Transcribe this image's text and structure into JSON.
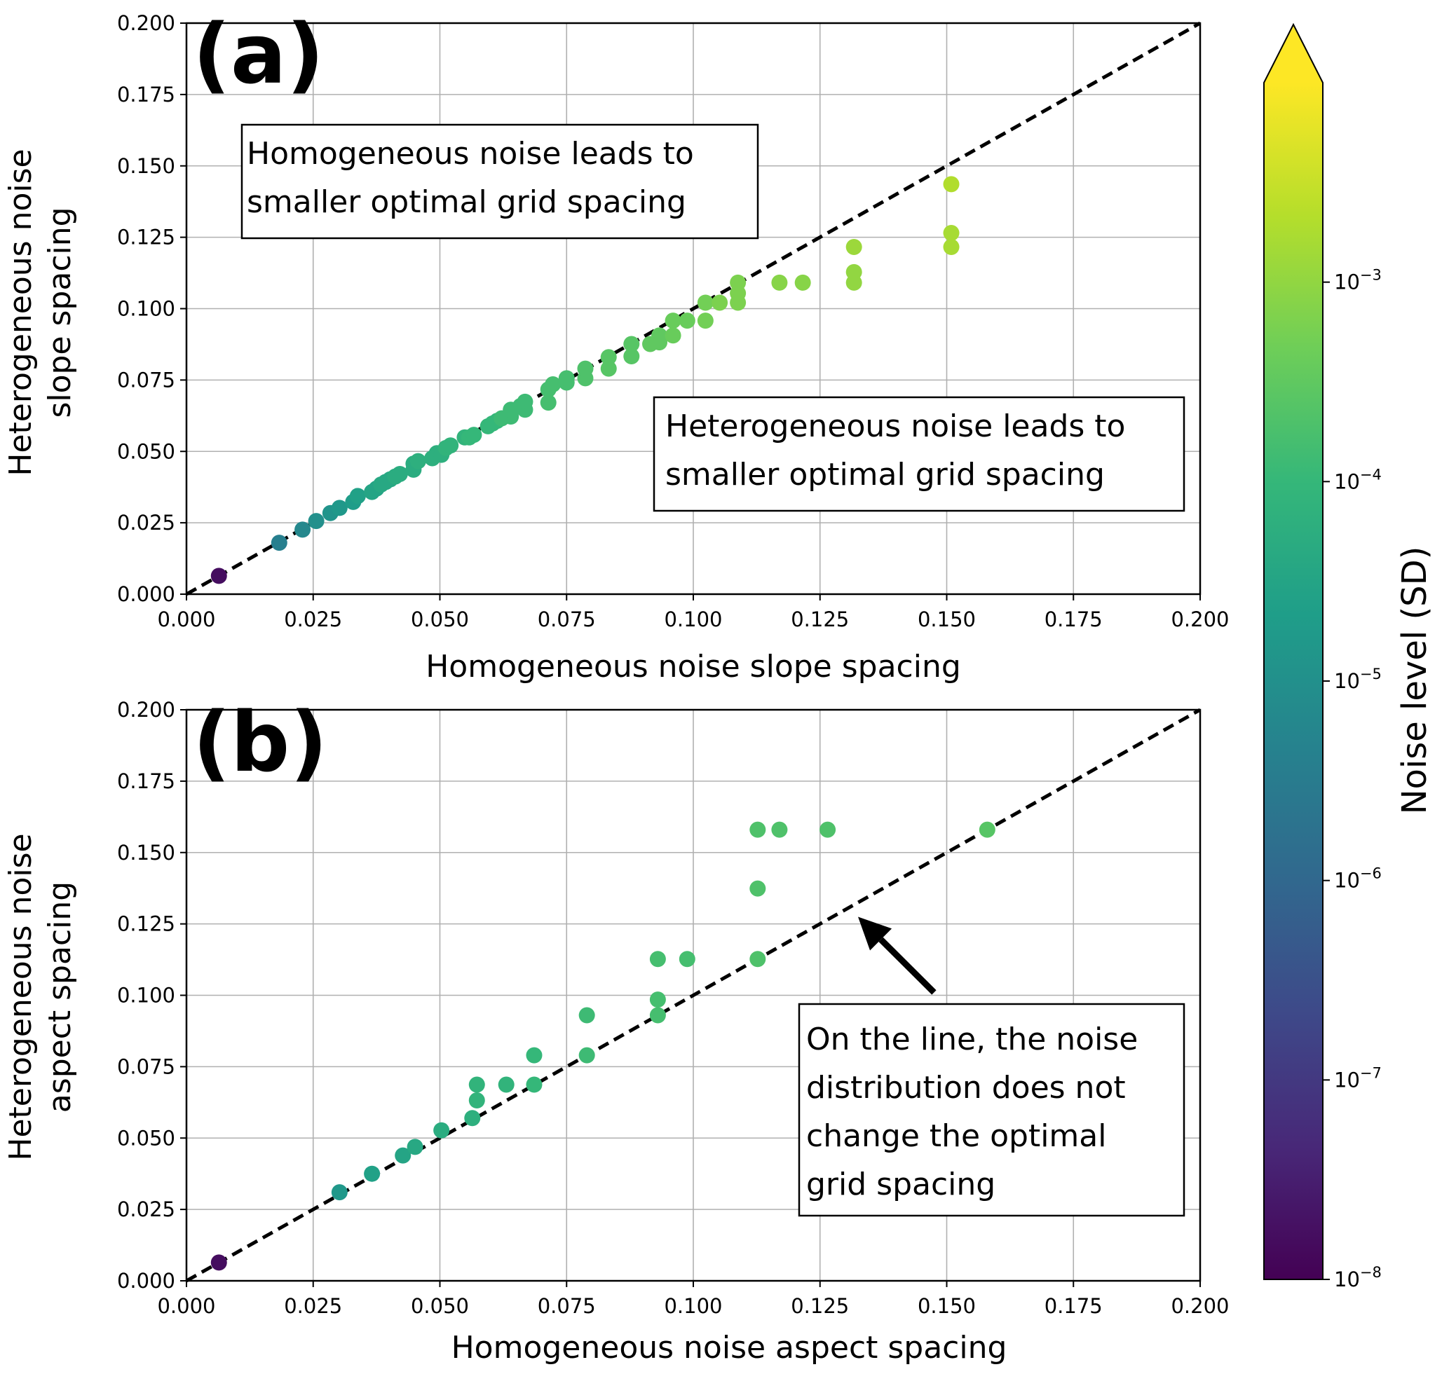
{
  "chart_data": [
    {
      "type": "scatter",
      "panel_label": "(a)",
      "xlabel": "Homogeneous noise slope spacing",
      "ylabel_lines": [
        "Heterogeneous noise",
        "slope spacing"
      ],
      "xlim": [
        0,
        0.2
      ],
      "ylim": [
        0,
        0.2
      ],
      "xticks": [
        "0.000",
        "0.025",
        "0.050",
        "0.075",
        "0.100",
        "0.125",
        "0.150",
        "0.175",
        "0.200"
      ],
      "yticks": [
        "0.000",
        "0.025",
        "0.050",
        "0.075",
        "0.100",
        "0.125",
        "0.150",
        "0.175",
        "0.200"
      ],
      "grid": true,
      "reference_line": "y = x",
      "annotations": [
        {
          "lines": [
            "Homogeneous noise leads to",
            "smaller optimal grid spacing"
          ]
        },
        {
          "lines": [
            "Heterogeneous noise leads to",
            "smaller optimal grid spacing"
          ]
        }
      ],
      "points": [
        {
          "x": 0.0064,
          "y": 0.0064,
          "log_noise": -7.8
        },
        {
          "x": 0.0183,
          "y": 0.018,
          "log_noise": -5.4
        },
        {
          "x": 0.0229,
          "y": 0.0226,
          "log_noise": -5.2
        },
        {
          "x": 0.0256,
          "y": 0.0256,
          "log_noise": -5.0
        },
        {
          "x": 0.0284,
          "y": 0.0284,
          "log_noise": -4.9
        },
        {
          "x": 0.0302,
          "y": 0.0302,
          "log_noise": -4.8
        },
        {
          "x": 0.0329,
          "y": 0.0323,
          "log_noise": -4.7
        },
        {
          "x": 0.0338,
          "y": 0.0344,
          "log_noise": -4.6
        },
        {
          "x": 0.0366,
          "y": 0.0358,
          "log_noise": -4.5
        },
        {
          "x": 0.0375,
          "y": 0.037,
          "log_noise": -4.5
        },
        {
          "x": 0.0384,
          "y": 0.0384,
          "log_noise": -4.4
        },
        {
          "x": 0.0393,
          "y": 0.0393,
          "log_noise": -4.4
        },
        {
          "x": 0.0402,
          "y": 0.0402,
          "log_noise": -4.4
        },
        {
          "x": 0.0412,
          "y": 0.0412,
          "log_noise": -4.3
        },
        {
          "x": 0.0421,
          "y": 0.0421,
          "log_noise": -4.3
        },
        {
          "x": 0.0448,
          "y": 0.0436,
          "log_noise": -4.3
        },
        {
          "x": 0.0448,
          "y": 0.0457,
          "log_noise": -4.3
        },
        {
          "x": 0.0457,
          "y": 0.0466,
          "log_noise": -4.2
        },
        {
          "x": 0.0485,
          "y": 0.0476,
          "log_noise": -4.2
        },
        {
          "x": 0.0494,
          "y": 0.0494,
          "log_noise": -4.2
        },
        {
          "x": 0.0503,
          "y": 0.0488,
          "log_noise": -4.2
        },
        {
          "x": 0.0512,
          "y": 0.0512,
          "log_noise": -4.1
        },
        {
          "x": 0.0521,
          "y": 0.0521,
          "log_noise": -4.1
        },
        {
          "x": 0.0549,
          "y": 0.0549,
          "log_noise": -4.1
        },
        {
          "x": 0.0558,
          "y": 0.0549,
          "log_noise": -4.0
        },
        {
          "x": 0.0567,
          "y": 0.0558,
          "log_noise": -4.0
        },
        {
          "x": 0.0595,
          "y": 0.0588,
          "log_noise": -4.0
        },
        {
          "x": 0.0604,
          "y": 0.0598,
          "log_noise": -4.0
        },
        {
          "x": 0.0613,
          "y": 0.0607,
          "log_noise": -4.0
        },
        {
          "x": 0.0622,
          "y": 0.0616,
          "log_noise": -3.9
        },
        {
          "x": 0.064,
          "y": 0.0622,
          "log_noise": -3.9
        },
        {
          "x": 0.064,
          "y": 0.0646,
          "log_noise": -3.9
        },
        {
          "x": 0.0659,
          "y": 0.0659,
          "log_noise": -3.9
        },
        {
          "x": 0.0668,
          "y": 0.0646,
          "log_noise": -3.9
        },
        {
          "x": 0.0668,
          "y": 0.0674,
          "log_noise": -3.9
        },
        {
          "x": 0.0714,
          "y": 0.0671,
          "log_noise": -3.8
        },
        {
          "x": 0.0714,
          "y": 0.0717,
          "log_noise": -3.8
        },
        {
          "x": 0.0723,
          "y": 0.0735,
          "log_noise": -3.8
        },
        {
          "x": 0.075,
          "y": 0.0741,
          "log_noise": -3.8
        },
        {
          "x": 0.075,
          "y": 0.0756,
          "log_noise": -3.8
        },
        {
          "x": 0.0787,
          "y": 0.0756,
          "log_noise": -3.7
        },
        {
          "x": 0.0787,
          "y": 0.079,
          "log_noise": -3.7
        },
        {
          "x": 0.0833,
          "y": 0.079,
          "log_noise": -3.6
        },
        {
          "x": 0.0833,
          "y": 0.083,
          "log_noise": -3.6
        },
        {
          "x": 0.0878,
          "y": 0.0833,
          "log_noise": -3.6
        },
        {
          "x": 0.0878,
          "y": 0.0876,
          "log_noise": -3.6
        },
        {
          "x": 0.0915,
          "y": 0.0876,
          "log_noise": -3.5
        },
        {
          "x": 0.0933,
          "y": 0.0882,
          "log_noise": -3.5
        },
        {
          "x": 0.0933,
          "y": 0.0906,
          "log_noise": -3.5
        },
        {
          "x": 0.096,
          "y": 0.0906,
          "log_noise": -3.4
        },
        {
          "x": 0.096,
          "y": 0.0958,
          "log_noise": -3.4
        },
        {
          "x": 0.0988,
          "y": 0.0958,
          "log_noise": -3.4
        },
        {
          "x": 0.1024,
          "y": 0.0958,
          "log_noise": -3.3
        },
        {
          "x": 0.1024,
          "y": 0.1021,
          "log_noise": -3.3
        },
        {
          "x": 0.1052,
          "y": 0.1021,
          "log_noise": -3.2
        },
        {
          "x": 0.1088,
          "y": 0.1021,
          "log_noise": -3.2
        },
        {
          "x": 0.1088,
          "y": 0.1054,
          "log_noise": -3.2
        },
        {
          "x": 0.1088,
          "y": 0.1091,
          "log_noise": -3.2
        },
        {
          "x": 0.117,
          "y": 0.1091,
          "log_noise": -3.1
        },
        {
          "x": 0.1216,
          "y": 0.1091,
          "log_noise": -3.1
        },
        {
          "x": 0.1317,
          "y": 0.1091,
          "log_noise": -3.0
        },
        {
          "x": 0.1317,
          "y": 0.1128,
          "log_noise": -3.0
        },
        {
          "x": 0.1317,
          "y": 0.1216,
          "log_noise": -2.9
        },
        {
          "x": 0.1509,
          "y": 0.1216,
          "log_noise": -2.8
        },
        {
          "x": 0.1509,
          "y": 0.1265,
          "log_noise": -2.8
        },
        {
          "x": 0.1509,
          "y": 0.1436,
          "log_noise": -2.7
        }
      ]
    },
    {
      "type": "scatter",
      "panel_label": "(b)",
      "xlabel": "Homogeneous noise aspect spacing",
      "ylabel_lines": [
        "Heterogeneous noise",
        "aspect spacing"
      ],
      "xlim": [
        0,
        0.2
      ],
      "ylim": [
        0,
        0.2
      ],
      "xticks": [
        "0.000",
        "0.025",
        "0.050",
        "0.075",
        "0.100",
        "0.125",
        "0.150",
        "0.175",
        "0.200"
      ],
      "yticks": [
        "0.000",
        "0.025",
        "0.050",
        "0.075",
        "0.100",
        "0.125",
        "0.150",
        "0.175",
        "0.200"
      ],
      "grid": true,
      "reference_line": "y = x",
      "annotations": [
        {
          "lines": [
            "On the line, the noise",
            "distribution does not",
            "change the optimal",
            "grid spacing"
          ]
        }
      ],
      "arrow": {
        "from": [
          0.1475,
          0.101
        ],
        "to": [
          0.1325,
          0.1275
        ]
      },
      "points": [
        {
          "x": 0.0064,
          "y": 0.0064,
          "log_noise": -7.8
        },
        {
          "x": 0.0302,
          "y": 0.031,
          "log_noise": -4.8
        },
        {
          "x": 0.0366,
          "y": 0.0375,
          "log_noise": -4.6
        },
        {
          "x": 0.0427,
          "y": 0.0439,
          "log_noise": -4.5
        },
        {
          "x": 0.0451,
          "y": 0.0469,
          "log_noise": -4.4
        },
        {
          "x": 0.0503,
          "y": 0.0527,
          "log_noise": -4.3
        },
        {
          "x": 0.0564,
          "y": 0.057,
          "log_noise": -4.2
        },
        {
          "x": 0.0573,
          "y": 0.0632,
          "log_noise": -4.1
        },
        {
          "x": 0.0573,
          "y": 0.0687,
          "log_noise": -4.1
        },
        {
          "x": 0.0631,
          "y": 0.0687,
          "log_noise": -4.1
        },
        {
          "x": 0.0686,
          "y": 0.0687,
          "log_noise": -4.0
        },
        {
          "x": 0.0686,
          "y": 0.079,
          "log_noise": -4.0
        },
        {
          "x": 0.079,
          "y": 0.079,
          "log_noise": -3.9
        },
        {
          "x": 0.079,
          "y": 0.093,
          "log_noise": -3.9
        },
        {
          "x": 0.093,
          "y": 0.093,
          "log_noise": -3.8
        },
        {
          "x": 0.093,
          "y": 0.0985,
          "log_noise": -3.8
        },
        {
          "x": 0.093,
          "y": 0.1127,
          "log_noise": -3.8
        },
        {
          "x": 0.0988,
          "y": 0.1127,
          "log_noise": -3.8
        },
        {
          "x": 0.1127,
          "y": 0.1127,
          "log_noise": -3.7
        },
        {
          "x": 0.1127,
          "y": 0.1374,
          "log_noise": -3.7
        },
        {
          "x": 0.1127,
          "y": 0.158,
          "log_noise": -3.7
        },
        {
          "x": 0.117,
          "y": 0.158,
          "log_noise": -3.7
        },
        {
          "x": 0.1265,
          "y": 0.158,
          "log_noise": -3.7
        },
        {
          "x": 0.158,
          "y": 0.158,
          "log_noise": -3.6
        }
      ]
    }
  ],
  "colorbar": {
    "label": "Noise level (SD)",
    "scale": "log",
    "colormap": "viridis",
    "range_log10": [
      -8,
      -2
    ],
    "extend": "max",
    "tick_exponents": [
      "−8",
      "−7",
      "−6",
      "−5",
      "−4",
      "−3"
    ],
    "tick_base": "10",
    "viridis_stops": [
      "#440154",
      "#482878",
      "#3e4989",
      "#31688e",
      "#26828e",
      "#1f9e89",
      "#35b779",
      "#6ece58",
      "#b5de2b",
      "#fde725"
    ]
  }
}
